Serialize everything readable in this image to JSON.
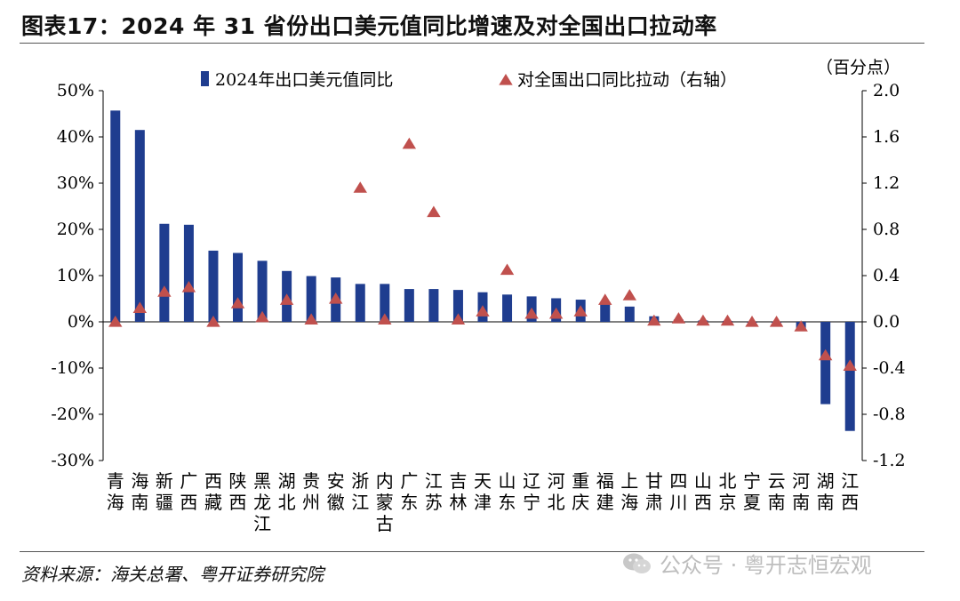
{
  "title": "图表17：2024 年 31 省份出口美元值同比增速及对全国出口拉动率",
  "source": "资料来源：海关总署、粤开证券研究院",
  "watermark": "公众号 · 粤开志恒宏观",
  "colors": {
    "bar": "#1F3D8F",
    "marker": "#C0504D",
    "axis": "#000000"
  },
  "chart_data": {
    "type": "bar",
    "categories": [
      "青海",
      "海南",
      "新疆",
      "广西",
      "西藏",
      "陕西",
      "黑龙江",
      "湖北",
      "贵州",
      "安徽",
      "浙江",
      "内蒙古",
      "广东",
      "江苏",
      "吉林",
      "天津",
      "山东",
      "辽宁",
      "河北",
      "重庆",
      "福建",
      "上海",
      "甘肃",
      "四川",
      "山西",
      "北京",
      "宁夏",
      "云南",
      "河南",
      "湖南",
      "江西"
    ],
    "series": [
      {
        "name": "2024年出口美元值同比",
        "type": "bar",
        "axis": "left",
        "values": [
          45.7,
          41.5,
          21.2,
          21.0,
          15.4,
          14.9,
          13.2,
          11.0,
          9.9,
          9.6,
          8.2,
          8.2,
          7.1,
          7.1,
          6.9,
          6.4,
          5.9,
          5.5,
          5.1,
          4.8,
          4.3,
          3.3,
          1.2,
          0.5,
          0.3,
          0.2,
          0.0,
          -0.2,
          -1.5,
          -17.8,
          -23.6
        ]
      },
      {
        "name": "对全国出口同比拉动（右轴）",
        "type": "scatter",
        "marker": "triangle",
        "axis": "right",
        "values": [
          0.0,
          0.12,
          0.26,
          0.3,
          0.0,
          0.16,
          0.04,
          0.19,
          0.02,
          0.2,
          1.16,
          0.02,
          1.54,
          0.95,
          0.02,
          0.09,
          0.45,
          0.07,
          0.07,
          0.09,
          0.19,
          0.23,
          0.01,
          0.03,
          0.01,
          0.01,
          0.0,
          0.0,
          -0.04,
          -0.29,
          -0.38
        ]
      }
    ],
    "y_left": {
      "min": -30,
      "max": 50,
      "step": 10,
      "ticks": [
        "-30%",
        "-20%",
        "-10%",
        "0%",
        "10%",
        "20%",
        "30%",
        "40%",
        "50%"
      ]
    },
    "y_right": {
      "min": -1.2,
      "max": 2.0,
      "step": 0.4,
      "label": "（百分点）",
      "ticks": [
        "-1.2",
        "-0.8",
        "-0.4",
        "0.0",
        "0.4",
        "0.8",
        "1.2",
        "1.6",
        "2.0"
      ]
    },
    "legend_position": "top"
  }
}
